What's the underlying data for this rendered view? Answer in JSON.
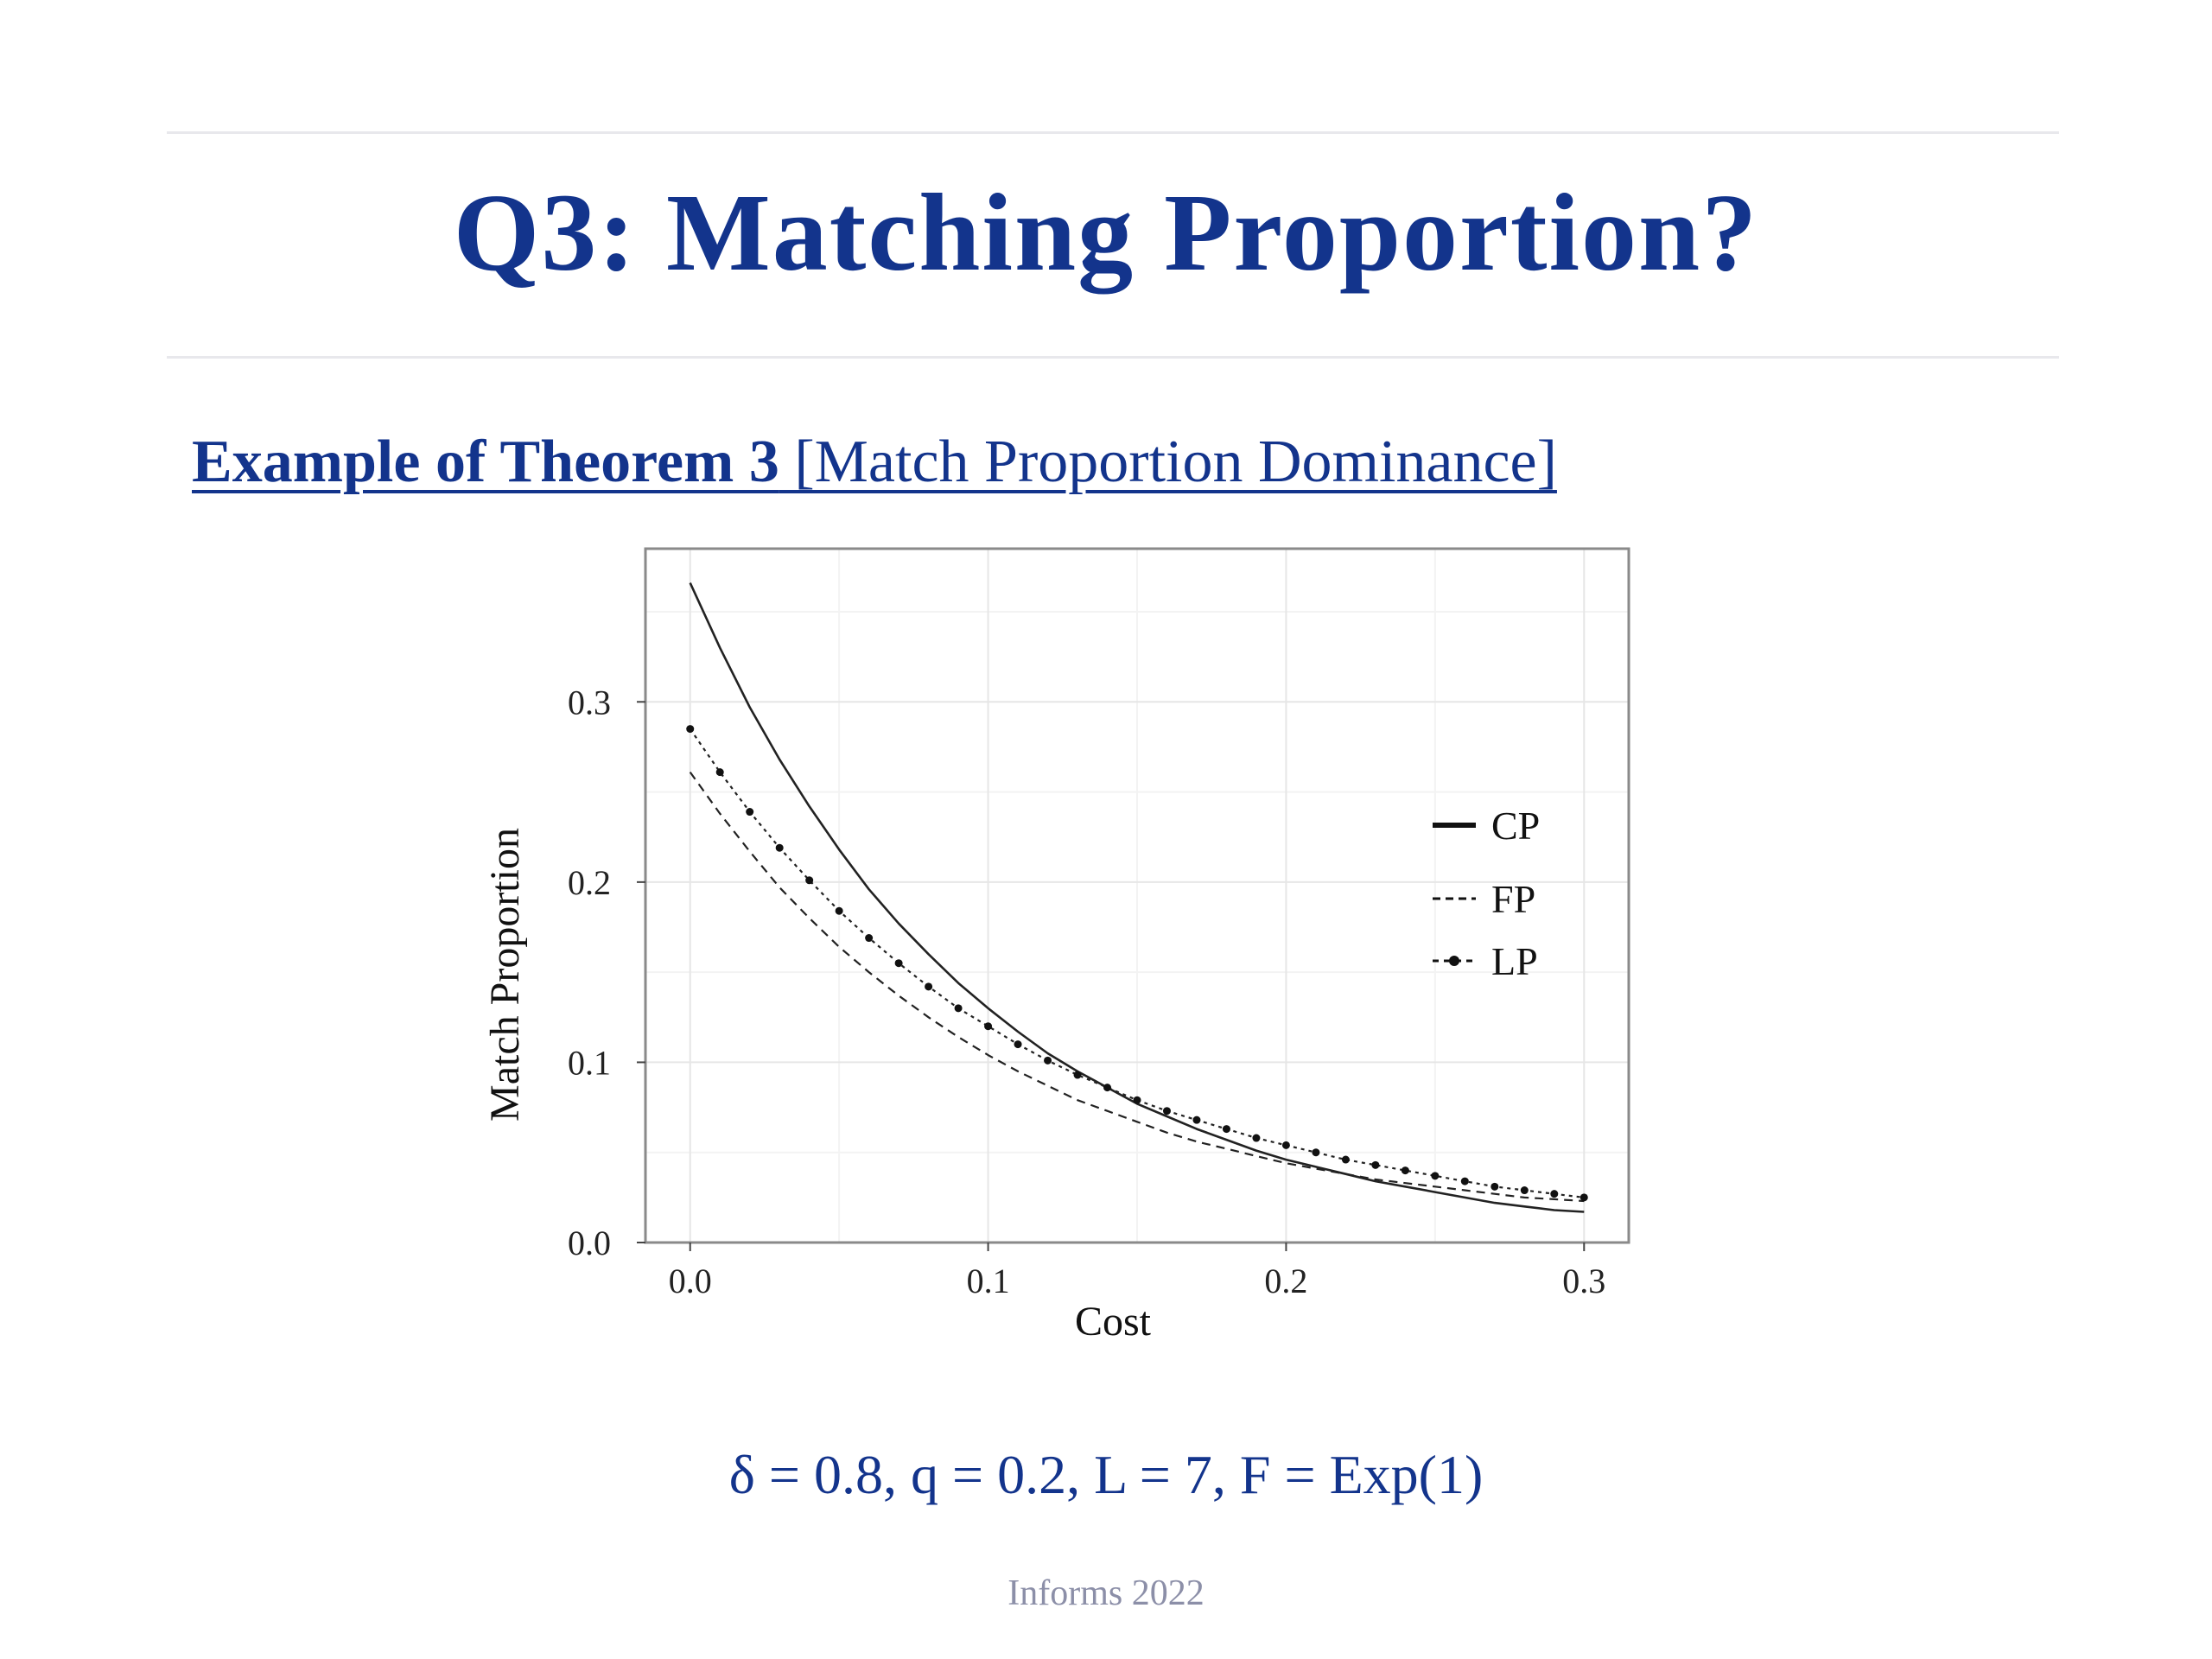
{
  "slide": {
    "title": "Q3: Matching Proportion?",
    "subtitle_bold": "Example of Theorem 3",
    "subtitle_rest": " [Match Proportion Dominance]",
    "params": "δ = 0.8, q = 0.2, L = 7, F = Exp(1)",
    "footer": "Informs 2022"
  },
  "chart_data": {
    "type": "line",
    "title": "",
    "xlabel": "Cost",
    "ylabel": "Match Proportion",
    "xlim": [
      -0.015,
      0.315
    ],
    "ylim": [
      0.0,
      0.385
    ],
    "xticks": [
      "0.0",
      "0.1",
      "0.2",
      "0.3"
    ],
    "yticks": [
      "0.0",
      "0.1",
      "0.2",
      "0.3"
    ],
    "grid": true,
    "legend_position": "right",
    "x": [
      0.0,
      0.01,
      0.02,
      0.03,
      0.04,
      0.05,
      0.06,
      0.07,
      0.08,
      0.09,
      0.1,
      0.11,
      0.12,
      0.13,
      0.14,
      0.15,
      0.16,
      0.17,
      0.18,
      0.19,
      0.2,
      0.21,
      0.22,
      0.23,
      0.24,
      0.25,
      0.26,
      0.27,
      0.28,
      0.29,
      0.3
    ],
    "series": [
      {
        "name": "CP",
        "style": "solid",
        "values": [
          0.366,
          0.33,
          0.297,
          0.268,
          0.242,
          0.218,
          0.196,
          0.177,
          0.16,
          0.144,
          0.13,
          0.117,
          0.105,
          0.095,
          0.086,
          0.077,
          0.07,
          0.063,
          0.057,
          0.051,
          0.046,
          0.042,
          0.038,
          0.034,
          0.031,
          0.028,
          0.025,
          0.022,
          0.02,
          0.018,
          0.017
        ]
      },
      {
        "name": "FP",
        "style": "dashed",
        "values": [
          0.261,
          0.238,
          0.217,
          0.197,
          0.18,
          0.164,
          0.15,
          0.137,
          0.125,
          0.114,
          0.104,
          0.095,
          0.087,
          0.079,
          0.073,
          0.067,
          0.061,
          0.056,
          0.052,
          0.048,
          0.044,
          0.041,
          0.038,
          0.035,
          0.033,
          0.031,
          0.029,
          0.027,
          0.025,
          0.024,
          0.023
        ]
      },
      {
        "name": "LP",
        "style": "dot-dash",
        "values": [
          0.285,
          0.261,
          0.239,
          0.219,
          0.201,
          0.184,
          0.169,
          0.155,
          0.142,
          0.13,
          0.12,
          0.11,
          0.101,
          0.093,
          0.086,
          0.079,
          0.073,
          0.068,
          0.063,
          0.058,
          0.054,
          0.05,
          0.046,
          0.043,
          0.04,
          0.037,
          0.034,
          0.031,
          0.029,
          0.027,
          0.025
        ]
      }
    ]
  }
}
